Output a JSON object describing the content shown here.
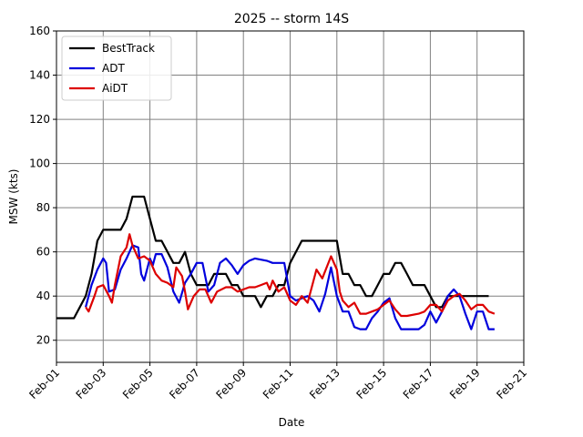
{
  "chart_data": {
    "type": "line",
    "title": "2025 -- storm 14S",
    "xlabel": "Date",
    "ylabel": "MSW (kts)",
    "ylim": [
      10,
      160
    ],
    "yticks": [
      20,
      40,
      60,
      80,
      100,
      120,
      140,
      160
    ],
    "xlim": [
      "2025-02-01",
      "2025-02-21"
    ],
    "xticks": [
      {
        "date": "2025-02-01",
        "label": "Feb-01"
      },
      {
        "date": "2025-02-03",
        "label": "Feb-03"
      },
      {
        "date": "2025-02-05",
        "label": "Feb-05"
      },
      {
        "date": "2025-02-07",
        "label": "Feb-07"
      },
      {
        "date": "2025-02-09",
        "label": "Feb-09"
      },
      {
        "date": "2025-02-11",
        "label": "Feb-11"
      },
      {
        "date": "2025-02-13",
        "label": "Feb-13"
      },
      {
        "date": "2025-02-15",
        "label": "Feb-15"
      },
      {
        "date": "2025-02-17",
        "label": "Feb-17"
      },
      {
        "date": "2025-02-19",
        "label": "Feb-19"
      },
      {
        "date": "2025-02-21",
        "label": "Feb-21"
      }
    ],
    "grid": true,
    "legend_position": "top-left",
    "series": [
      {
        "name": "BestTrack",
        "color": "#000000",
        "points": [
          [
            "2025-02-01 00:00",
            30
          ],
          [
            "2025-02-01 18:00",
            30
          ],
          [
            "2025-02-02 06:00",
            40
          ],
          [
            "2025-02-02 12:00",
            50
          ],
          [
            "2025-02-02 18:00",
            65
          ],
          [
            "2025-02-03 00:00",
            70
          ],
          [
            "2025-02-03 18:00",
            70
          ],
          [
            "2025-02-04 00:00",
            75
          ],
          [
            "2025-02-04 06:00",
            85
          ],
          [
            "2025-02-04 18:00",
            85
          ],
          [
            "2025-02-05 00:00",
            75
          ],
          [
            "2025-02-05 06:00",
            65
          ],
          [
            "2025-02-05 12:00",
            65
          ],
          [
            "2025-02-06 00:00",
            55
          ],
          [
            "2025-02-06 06:00",
            55
          ],
          [
            "2025-02-06 12:00",
            60
          ],
          [
            "2025-02-06 18:00",
            50
          ],
          [
            "2025-02-07 00:00",
            45
          ],
          [
            "2025-02-07 12:00",
            45
          ],
          [
            "2025-02-07 18:00",
            50
          ],
          [
            "2025-02-08 06:00",
            50
          ],
          [
            "2025-02-08 12:00",
            45
          ],
          [
            "2025-02-08 18:00",
            45
          ],
          [
            "2025-02-09 00:00",
            40
          ],
          [
            "2025-02-09 12:00",
            40
          ],
          [
            "2025-02-09 18:00",
            35
          ],
          [
            "2025-02-10 00:00",
            40
          ],
          [
            "2025-02-10 06:00",
            40
          ],
          [
            "2025-02-10 12:00",
            45
          ],
          [
            "2025-02-10 18:00",
            45
          ],
          [
            "2025-02-11 00:00",
            55
          ],
          [
            "2025-02-11 12:00",
            65
          ],
          [
            "2025-02-12 00:00",
            65
          ],
          [
            "2025-02-13 00:00",
            65
          ],
          [
            "2025-02-13 06:00",
            50
          ],
          [
            "2025-02-13 12:00",
            50
          ],
          [
            "2025-02-13 18:00",
            45
          ],
          [
            "2025-02-14 00:00",
            45
          ],
          [
            "2025-02-14 06:00",
            40
          ],
          [
            "2025-02-14 12:00",
            40
          ],
          [
            "2025-02-14 18:00",
            45
          ],
          [
            "2025-02-15 00:00",
            50
          ],
          [
            "2025-02-15 06:00",
            50
          ],
          [
            "2025-02-15 12:00",
            55
          ],
          [
            "2025-02-15 18:00",
            55
          ],
          [
            "2025-02-16 00:00",
            50
          ],
          [
            "2025-02-16 06:00",
            45
          ],
          [
            "2025-02-16 18:00",
            45
          ],
          [
            "2025-02-17 00:00",
            40
          ],
          [
            "2025-02-17 06:00",
            35
          ],
          [
            "2025-02-17 12:00",
            35
          ],
          [
            "2025-02-17 18:00",
            40
          ],
          [
            "2025-02-18 00:00",
            40
          ],
          [
            "2025-02-19 12:00",
            40
          ]
        ]
      },
      {
        "name": "ADT",
        "color": "#0000dd",
        "points": [
          [
            "2025-02-02 06:00",
            35
          ],
          [
            "2025-02-02 12:00",
            45
          ],
          [
            "2025-02-02 18:00",
            52
          ],
          [
            "2025-02-03 00:00",
            57
          ],
          [
            "2025-02-03 03:00",
            55
          ],
          [
            "2025-02-03 06:00",
            42
          ],
          [
            "2025-02-03 12:00",
            43
          ],
          [
            "2025-02-03 18:00",
            52
          ],
          [
            "2025-02-04 00:00",
            57
          ],
          [
            "2025-02-04 06:00",
            63
          ],
          [
            "2025-02-04 12:00",
            62
          ],
          [
            "2025-02-04 15:00",
            50
          ],
          [
            "2025-02-04 18:00",
            47
          ],
          [
            "2025-02-05 00:00",
            57
          ],
          [
            "2025-02-05 03:00",
            54
          ],
          [
            "2025-02-05 06:00",
            59
          ],
          [
            "2025-02-05 12:00",
            59
          ],
          [
            "2025-02-05 18:00",
            53
          ],
          [
            "2025-02-06 00:00",
            42
          ],
          [
            "2025-02-06 06:00",
            37
          ],
          [
            "2025-02-06 12:00",
            46
          ],
          [
            "2025-02-06 18:00",
            50
          ],
          [
            "2025-02-07 00:00",
            55
          ],
          [
            "2025-02-07 06:00",
            55
          ],
          [
            "2025-02-07 12:00",
            42
          ],
          [
            "2025-02-07 18:00",
            45
          ],
          [
            "2025-02-08 00:00",
            55
          ],
          [
            "2025-02-08 06:00",
            57
          ],
          [
            "2025-02-08 12:00",
            54
          ],
          [
            "2025-02-08 18:00",
            50
          ],
          [
            "2025-02-09 00:00",
            54
          ],
          [
            "2025-02-09 06:00",
            56
          ],
          [
            "2025-02-09 12:00",
            57
          ],
          [
            "2025-02-10 00:00",
            56
          ],
          [
            "2025-02-10 06:00",
            55
          ],
          [
            "2025-02-10 18:00",
            55
          ],
          [
            "2025-02-11 00:00",
            40
          ],
          [
            "2025-02-11 06:00",
            38
          ],
          [
            "2025-02-11 18:00",
            40
          ],
          [
            "2025-02-12 00:00",
            38
          ],
          [
            "2025-02-12 06:00",
            33
          ],
          [
            "2025-02-12 12:00",
            41
          ],
          [
            "2025-02-12 18:00",
            53
          ],
          [
            "2025-02-13 00:00",
            40
          ],
          [
            "2025-02-13 06:00",
            33
          ],
          [
            "2025-02-13 12:00",
            33
          ],
          [
            "2025-02-13 18:00",
            26
          ],
          [
            "2025-02-14 00:00",
            25
          ],
          [
            "2025-02-14 06:00",
            25
          ],
          [
            "2025-02-14 12:00",
            30
          ],
          [
            "2025-02-14 18:00",
            33
          ],
          [
            "2025-02-15 00:00",
            37
          ],
          [
            "2025-02-15 06:00",
            39
          ],
          [
            "2025-02-15 12:00",
            30
          ],
          [
            "2025-02-15 18:00",
            25
          ],
          [
            "2025-02-16 00:00",
            25
          ],
          [
            "2025-02-16 12:00",
            25
          ],
          [
            "2025-02-16 18:00",
            27
          ],
          [
            "2025-02-17 00:00",
            33
          ],
          [
            "2025-02-17 06:00",
            28
          ],
          [
            "2025-02-17 12:00",
            33
          ],
          [
            "2025-02-17 18:00",
            40
          ],
          [
            "2025-02-18 00:00",
            43
          ],
          [
            "2025-02-18 06:00",
            40
          ],
          [
            "2025-02-18 12:00",
            32
          ],
          [
            "2025-02-18 18:00",
            25
          ],
          [
            "2025-02-19 00:00",
            33
          ],
          [
            "2025-02-19 06:00",
            33
          ],
          [
            "2025-02-19 12:00",
            25
          ],
          [
            "2025-02-19 18:00",
            25
          ]
        ]
      },
      {
        "name": "AiDT",
        "color": "#dd0000",
        "points": [
          [
            "2025-02-02 06:00",
            35
          ],
          [
            "2025-02-02 09:00",
            33
          ],
          [
            "2025-02-02 15:00",
            40
          ],
          [
            "2025-02-02 18:00",
            44
          ],
          [
            "2025-02-03 00:00",
            45
          ],
          [
            "2025-02-03 06:00",
            40
          ],
          [
            "2025-02-03 09:00",
            37
          ],
          [
            "2025-02-03 12:00",
            45
          ],
          [
            "2025-02-03 18:00",
            58
          ],
          [
            "2025-02-04 00:00",
            62
          ],
          [
            "2025-02-04 03:00",
            68
          ],
          [
            "2025-02-04 06:00",
            63
          ],
          [
            "2025-02-04 12:00",
            57
          ],
          [
            "2025-02-04 18:00",
            58
          ],
          [
            "2025-02-05 00:00",
            56
          ],
          [
            "2025-02-05 06:00",
            50
          ],
          [
            "2025-02-05 12:00",
            47
          ],
          [
            "2025-02-05 18:00",
            46
          ],
          [
            "2025-02-06 00:00",
            44
          ],
          [
            "2025-02-06 03:00",
            53
          ],
          [
            "2025-02-06 09:00",
            49
          ],
          [
            "2025-02-06 12:00",
            42
          ],
          [
            "2025-02-06 15:00",
            34
          ],
          [
            "2025-02-06 21:00",
            40
          ],
          [
            "2025-02-07 03:00",
            43
          ],
          [
            "2025-02-07 09:00",
            43
          ],
          [
            "2025-02-07 15:00",
            37
          ],
          [
            "2025-02-07 21:00",
            42
          ],
          [
            "2025-02-08 06:00",
            44
          ],
          [
            "2025-02-08 12:00",
            44
          ],
          [
            "2025-02-08 18:00",
            42
          ],
          [
            "2025-02-09 00:00",
            43
          ],
          [
            "2025-02-09 06:00",
            44
          ],
          [
            "2025-02-09 12:00",
            44
          ],
          [
            "2025-02-09 18:00",
            45
          ],
          [
            "2025-02-10 00:00",
            46
          ],
          [
            "2025-02-10 03:00",
            43
          ],
          [
            "2025-02-10 06:00",
            47
          ],
          [
            "2025-02-10 12:00",
            42
          ],
          [
            "2025-02-10 18:00",
            44
          ],
          [
            "2025-02-11 00:00",
            38
          ],
          [
            "2025-02-11 06:00",
            36
          ],
          [
            "2025-02-11 12:00",
            40
          ],
          [
            "2025-02-11 18:00",
            37
          ],
          [
            "2025-02-12 03:00",
            52
          ],
          [
            "2025-02-12 09:00",
            48
          ],
          [
            "2025-02-12 18:00",
            58
          ],
          [
            "2025-02-13 00:00",
            52
          ],
          [
            "2025-02-13 03:00",
            42
          ],
          [
            "2025-02-13 06:00",
            38
          ],
          [
            "2025-02-13 12:00",
            35
          ],
          [
            "2025-02-13 18:00",
            37
          ],
          [
            "2025-02-14 00:00",
            32
          ],
          [
            "2025-02-14 06:00",
            32
          ],
          [
            "2025-02-14 12:00",
            33
          ],
          [
            "2025-02-14 18:00",
            34
          ],
          [
            "2025-02-15 00:00",
            36
          ],
          [
            "2025-02-15 06:00",
            38
          ],
          [
            "2025-02-15 12:00",
            34
          ],
          [
            "2025-02-15 18:00",
            31
          ],
          [
            "2025-02-16 00:00",
            31
          ],
          [
            "2025-02-16 12:00",
            32
          ],
          [
            "2025-02-16 18:00",
            33
          ],
          [
            "2025-02-17 00:00",
            36
          ],
          [
            "2025-02-17 06:00",
            36
          ],
          [
            "2025-02-17 12:00",
            33
          ],
          [
            "2025-02-17 18:00",
            38
          ],
          [
            "2025-02-18 00:00",
            40
          ],
          [
            "2025-02-18 06:00",
            41
          ],
          [
            "2025-02-18 12:00",
            38
          ],
          [
            "2025-02-18 18:00",
            34
          ],
          [
            "2025-02-19 00:00",
            36
          ],
          [
            "2025-02-19 06:00",
            36
          ],
          [
            "2025-02-19 12:00",
            33
          ],
          [
            "2025-02-19 18:00",
            32
          ]
        ]
      }
    ]
  }
}
